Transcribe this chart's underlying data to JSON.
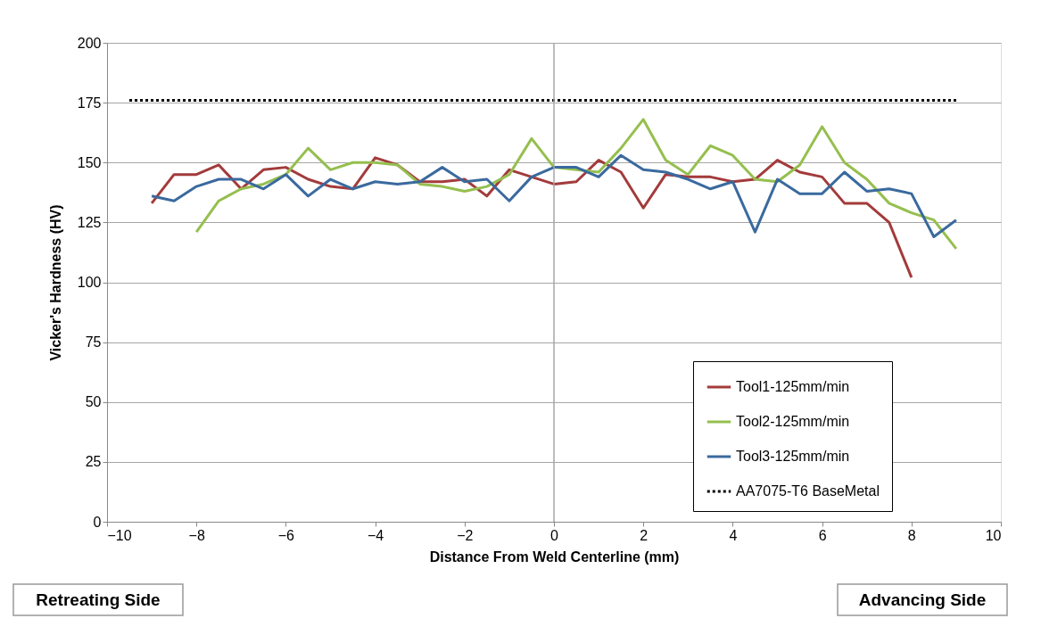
{
  "chart_data": {
    "type": "line",
    "xlabel": "Distance From Weld Centerline (mm)",
    "ylabel": "Vicker's Hardness (HV)",
    "xlim": [
      -10,
      10
    ],
    "xticks": [
      -10,
      -8,
      -6,
      -4,
      -2,
      0,
      2,
      4,
      6,
      8,
      10
    ],
    "ylim": [
      0,
      200
    ],
    "yticks": [
      0,
      25,
      50,
      75,
      100,
      125,
      150,
      175,
      200
    ],
    "grid": "y",
    "legend": "bottom right",
    "marker": "none",
    "ref_lines": [
      {
        "axis": "x",
        "value": 0,
        "color": "#a6a6a6"
      }
    ],
    "annotations": [
      "Retreating Side",
      "Advancing Side"
    ],
    "series": [
      {
        "name": "Tool1-125mm/min",
        "color": "#a33b3b",
        "line_style": "solid",
        "x": [
          -9,
          -8.5,
          -8,
          -7.5,
          -7,
          -6.5,
          -6,
          -5.5,
          -5,
          -4.5,
          -4,
          -3.5,
          -3,
          -2.5,
          -2,
          -1.5,
          -1,
          -0.5,
          0,
          0.5,
          1,
          1.5,
          2,
          2.5,
          3,
          3.5,
          4,
          4.5,
          5,
          5.5,
          6,
          6.5,
          7,
          7.5,
          8
        ],
        "values": [
          133,
          145,
          145,
          149,
          139,
          147,
          148,
          143,
          140,
          139,
          152,
          149,
          142,
          142,
          143,
          136,
          147,
          144,
          141,
          142,
          151,
          146,
          131,
          145,
          144,
          144,
          142,
          143,
          151,
          146,
          144,
          133,
          133,
          125,
          102
        ]
      },
      {
        "name": "Tool2-125mm/min",
        "color": "#95bf4f",
        "line_style": "solid",
        "x": [
          -8,
          -7.5,
          -7,
          -6.5,
          -6,
          -5.5,
          -5,
          -4.5,
          -4,
          -3.5,
          -3,
          -2.5,
          -2,
          -1.5,
          -1,
          -0.5,
          0,
          0.5,
          1,
          1.5,
          2,
          2.5,
          3,
          3.5,
          4,
          4.5,
          5,
          5.5,
          6,
          6.5,
          7,
          7.5,
          8,
          8.5,
          9
        ],
        "values": [
          121,
          134,
          139,
          141,
          145,
          156,
          147,
          150,
          150,
          149,
          141,
          140,
          138,
          140,
          145,
          160,
          148,
          147,
          146,
          156,
          168,
          151,
          145,
          157,
          153,
          143,
          142,
          149,
          165,
          150,
          143,
          133,
          129,
          126,
          114
        ]
      },
      {
        "name": "Tool3-125mm/min",
        "color": "#3a6a9e",
        "line_style": "solid",
        "x": [
          -9,
          -8.5,
          -8,
          -7.5,
          -7,
          -6.5,
          -6,
          -5.5,
          -5,
          -4.5,
          -4,
          -3.5,
          -3,
          -2.5,
          -2,
          -1.5,
          -1,
          -0.5,
          0,
          0.5,
          1,
          1.5,
          2,
          2.5,
          3,
          3.5,
          4,
          4.5,
          5,
          5.5,
          6,
          6.5,
          7,
          7.5,
          8,
          8.5,
          9
        ],
        "values": [
          136,
          134,
          140,
          143,
          143,
          139,
          145,
          136,
          143,
          139,
          142,
          141,
          142,
          148,
          142,
          143,
          134,
          144,
          148,
          148,
          144,
          153,
          147,
          146,
          143,
          139,
          142,
          121,
          143,
          137,
          137,
          146,
          138,
          139,
          137,
          119,
          126
        ]
      },
      {
        "name": "AA7075-T6 BaseMetal",
        "color": "#000000",
        "line_style": "dotted",
        "x": [
          -9.5,
          9
        ],
        "values": [
          176,
          176
        ]
      }
    ]
  }
}
